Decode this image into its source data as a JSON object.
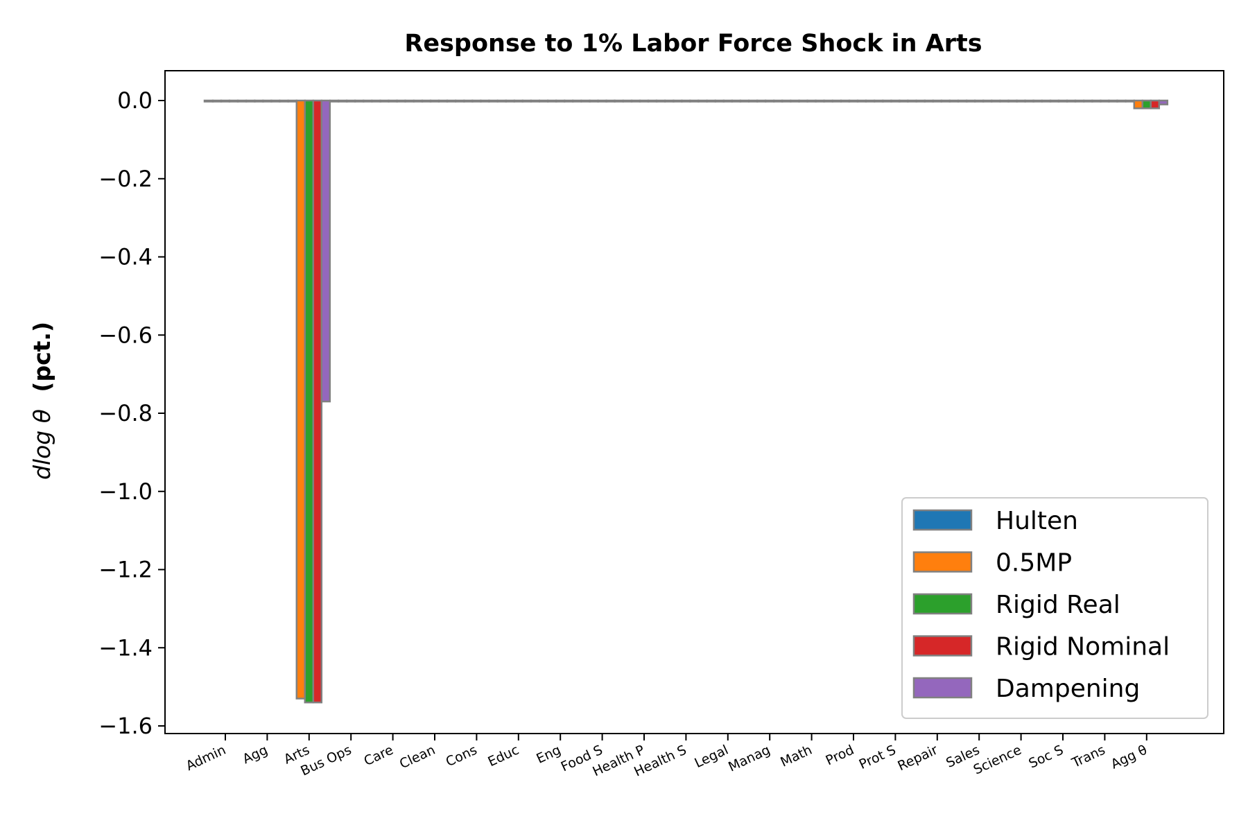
{
  "chart_data": {
    "type": "bar",
    "title": "Response to 1% Labor Force Shock in Arts",
    "ylabel_math": "dlog θ",
    "ylabel_unit": "(pct.)",
    "xlabel": "",
    "categories": [
      "Admin",
      "Agg",
      "Arts",
      "Bus Ops",
      "Care",
      "Clean",
      "Cons",
      "Educ",
      "Eng",
      "Food S",
      "Health P",
      "Health S",
      "Legal",
      "Manag",
      "Math",
      "Prod",
      "Prot S",
      "Repair",
      "Sales",
      "Science",
      "Soc S",
      "Trans",
      "Agg θ"
    ],
    "series": [
      {
        "name": "Hulten",
        "color": "#1f77b4",
        "values": [
          0,
          0,
          0,
          0,
          0,
          0,
          0,
          0,
          0,
          0,
          0,
          0,
          0,
          0,
          0,
          0,
          0,
          0,
          0,
          0,
          0,
          0,
          0
        ]
      },
      {
        "name": "0.5MP",
        "color": "#ff7f0e",
        "values": [
          0,
          0,
          -1.53,
          0,
          0,
          0,
          0,
          0,
          0,
          0,
          0,
          0,
          0,
          0,
          0,
          0,
          0,
          0,
          0,
          0,
          0,
          0,
          -0.02
        ]
      },
      {
        "name": "Rigid Real",
        "color": "#2ca02c",
        "values": [
          0,
          0,
          -1.54,
          0,
          0,
          0,
          0,
          0,
          0,
          0,
          0,
          0,
          0,
          0,
          0,
          0,
          0,
          0,
          0,
          0,
          0,
          0,
          -0.02
        ]
      },
      {
        "name": "Rigid Nominal",
        "color": "#d62728",
        "values": [
          0,
          0,
          -1.54,
          0,
          0,
          0,
          0,
          0,
          0,
          0,
          0,
          0,
          0,
          0,
          0,
          0,
          0,
          0,
          0,
          0,
          0,
          0,
          -0.02
        ]
      },
      {
        "name": "Dampening",
        "color": "#9467bd",
        "values": [
          0,
          0,
          -0.77,
          0,
          0,
          0,
          0,
          0,
          0,
          0,
          0,
          0,
          0,
          0,
          0,
          0,
          0,
          0,
          0,
          0,
          0,
          0,
          -0.01
        ]
      }
    ],
    "ylim": [
      -1.62,
      0.08
    ],
    "yticks": [
      0.0,
      -0.2,
      -0.4,
      -0.6,
      -0.8,
      -1.0,
      -1.2,
      -1.4,
      -1.6
    ],
    "ytick_labels": [
      "0.0",
      "−0.2",
      "−0.4",
      "−0.6",
      "−0.8",
      "−1.0",
      "−1.2",
      "−1.4",
      "−1.6"
    ],
    "legend_position": "lower-right",
    "bar_edge_color": "#808080"
  }
}
